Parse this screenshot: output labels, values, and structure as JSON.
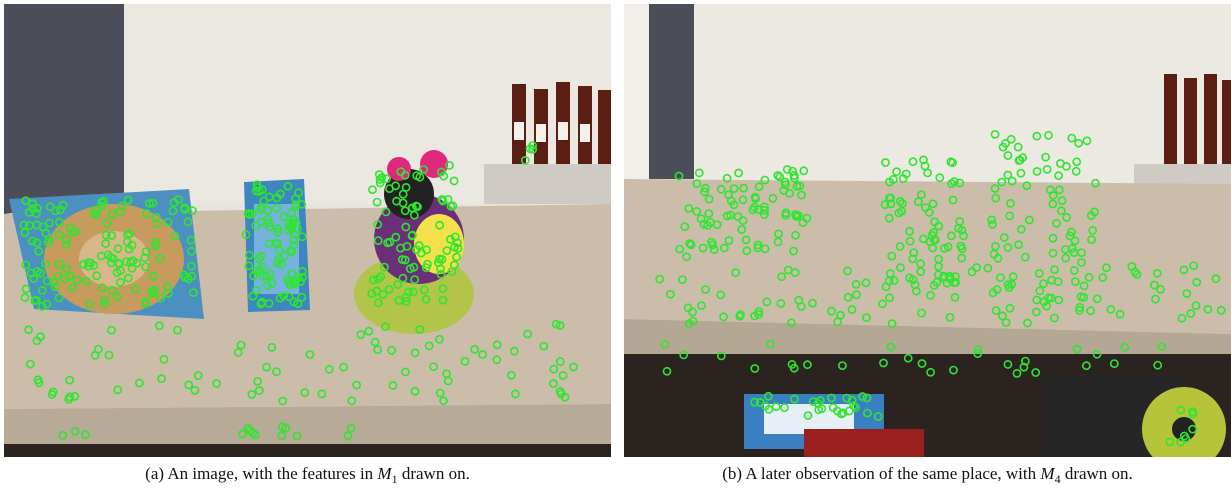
{
  "figure": {
    "panels": [
      {
        "id": "a",
        "caption_prefix": "(a) An image, with the features in",
        "caption_var": "M",
        "caption_sub": "1",
        "caption_suffix": "drawn on."
      },
      {
        "id": "b",
        "caption_prefix": "(b) A later observation of the same place, with",
        "caption_var": "M",
        "caption_sub": "4",
        "caption_suffix": "drawn on."
      }
    ],
    "colors": {
      "feature_marker": "#2ee62e",
      "wall": "#e9e5de",
      "countertop": "#cdbfad",
      "cabinet_shadow": "#2a2320",
      "left_wall_dark": "#4a4c57"
    },
    "icon_names": [
      "feature-circle-marker"
    ]
  }
}
